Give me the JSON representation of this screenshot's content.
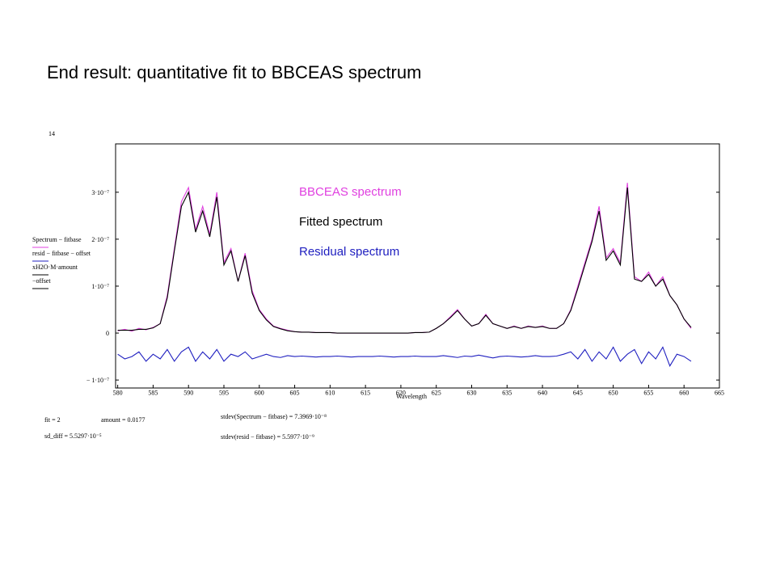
{
  "title": "End result: quantitative fit to BBCEAS spectrum",
  "chart_data": {
    "type": "line",
    "corner_label": "14",
    "x_label": "Wavelength",
    "trace_labels": [
      "Spectrum − fitbase",
      "resid − fitbase − offset",
      "xH2O·M·amount",
      "−offset"
    ],
    "xlim": [
      579.7,
      665
    ],
    "ylim": [
      -1.17e-07,
      4.03e-07
    ],
    "xticks": [
      580,
      585,
      590,
      595,
      600,
      605,
      610,
      615,
      620,
      625,
      630,
      635,
      640,
      645,
      650,
      655,
      660,
      665
    ],
    "yticks": [
      {
        "value": -1e-07,
        "label": "− 1·10⁻⁷"
      },
      0,
      {
        "value": 1e-07,
        "label": "1·10⁻⁷"
      },
      {
        "value": 2e-07,
        "label": "2·10⁻⁷"
      },
      {
        "value": 3e-07,
        "label": "3·10⁻⁷"
      }
    ],
    "x": [
      580,
      581,
      582,
      583,
      584,
      585,
      586,
      587,
      588,
      589,
      590,
      591,
      592,
      593,
      594,
      595,
      596,
      597,
      598,
      599,
      600,
      601,
      602,
      603,
      604,
      605,
      606,
      607,
      608,
      609,
      610,
      611,
      612,
      613,
      614,
      615,
      616,
      617,
      618,
      619,
      620,
      621,
      622,
      623,
      624,
      625,
      626,
      627,
      628,
      629,
      630,
      631,
      632,
      633,
      634,
      635,
      636,
      637,
      638,
      639,
      640,
      641,
      642,
      643,
      644,
      645,
      646,
      647,
      648,
      649,
      650,
      651,
      652,
      653,
      654,
      655,
      656,
      657,
      658,
      659,
      660,
      661
    ],
    "series": [
      {
        "name": "BBCEAS spectrum",
        "color": "#e040e0",
        "values": [
          5e-09,
          8e-09,
          4e-09,
          1e-08,
          7e-09,
          1.2e-08,
          2e-08,
          8e-08,
          1.8e-07,
          2.8e-07,
          3.1e-07,
          2.2e-07,
          2.7e-07,
          2.1e-07,
          3e-07,
          1.5e-07,
          1.8e-07,
          1.1e-07,
          1.7e-07,
          9e-08,
          5e-08,
          3e-08,
          1.5e-08,
          1e-08,
          6e-09,
          3e-09,
          2e-09,
          2e-09,
          1e-09,
          1e-09,
          1e-09,
          0,
          0,
          0,
          0,
          0,
          0,
          0,
          0,
          0,
          0,
          0,
          1e-09,
          1e-09,
          2e-09,
          1e-08,
          2e-08,
          3.5e-08,
          5e-08,
          3e-08,
          1.5e-08,
          2e-08,
          4e-08,
          2e-08,
          1.5e-08,
          1e-08,
          1.5e-08,
          1e-08,
          1.5e-08,
          1.2e-08,
          1.5e-08,
          1e-08,
          1e-08,
          2e-08,
          5e-08,
          1e-07,
          1.5e-07,
          2e-07,
          2.7e-07,
          1.6e-07,
          1.8e-07,
          1.5e-07,
          3.2e-07,
          1.2e-07,
          1.1e-07,
          1.3e-07,
          1e-07,
          1.2e-07,
          8e-08,
          6e-08,
          3e-08,
          1e-08
        ]
      },
      {
        "name": "Fitted spectrum",
        "color": "#000000",
        "values": [
          6e-09,
          6e-09,
          6e-09,
          8e-09,
          8e-09,
          1.1e-08,
          2e-08,
          7.5e-08,
          1.75e-07,
          2.7e-07,
          3e-07,
          2.15e-07,
          2.6e-07,
          2.05e-07,
          2.9e-07,
          1.45e-07,
          1.75e-07,
          1.1e-07,
          1.65e-07,
          8.5e-08,
          4.8e-08,
          2.8e-08,
          1.4e-08,
          9e-09,
          5e-09,
          3e-09,
          2e-09,
          2e-09,
          1e-09,
          1e-09,
          1e-09,
          0,
          0,
          0,
          0,
          0,
          0,
          0,
          0,
          0,
          0,
          0,
          1e-09,
          1e-09,
          2e-09,
          1e-08,
          2e-08,
          3.3e-08,
          4.8e-08,
          3e-08,
          1.5e-08,
          2e-08,
          3.8e-08,
          2e-08,
          1.5e-08,
          1e-08,
          1.4e-08,
          1e-08,
          1.4e-08,
          1.2e-08,
          1.4e-08,
          1e-08,
          1e-08,
          2e-08,
          4.8e-08,
          9.5e-08,
          1.45e-07,
          1.95e-07,
          2.6e-07,
          1.55e-07,
          1.75e-07,
          1.45e-07,
          3.1e-07,
          1.15e-07,
          1.1e-07,
          1.25e-07,
          1e-07,
          1.15e-07,
          8e-08,
          6e-08,
          3e-08,
          1.2e-08
        ]
      },
      {
        "name": "Residual spectrum",
        "color": "#2020c0",
        "values": [
          -4.5e-08,
          -5.5e-08,
          -5e-08,
          -4e-08,
          -6e-08,
          -4.5e-08,
          -5.5e-08,
          -3.5e-08,
          -6e-08,
          -4e-08,
          -3e-08,
          -6e-08,
          -4e-08,
          -5.5e-08,
          -3.5e-08,
          -6e-08,
          -4.5e-08,
          -5e-08,
          -4e-08,
          -5.5e-08,
          -5e-08,
          -4.5e-08,
          -5e-08,
          -5.2e-08,
          -4.8e-08,
          -5e-08,
          -4.9e-08,
          -5e-08,
          -5.1e-08,
          -5e-08,
          -5e-08,
          -4.9e-08,
          -5e-08,
          -5.1e-08,
          -5e-08,
          -5e-08,
          -5e-08,
          -4.9e-08,
          -5e-08,
          -5.1e-08,
          -5e-08,
          -5e-08,
          -4.9e-08,
          -5e-08,
          -5e-08,
          -5e-08,
          -4.8e-08,
          -5e-08,
          -5.2e-08,
          -4.9e-08,
          -5e-08,
          -4.7e-08,
          -5e-08,
          -5.3e-08,
          -5e-08,
          -4.9e-08,
          -5e-08,
          -5.1e-08,
          -5e-08,
          -4.8e-08,
          -5e-08,
          -5e-08,
          -4.9e-08,
          -4.5e-08,
          -4e-08,
          -5.5e-08,
          -3.5e-08,
          -6e-08,
          -4e-08,
          -5.5e-08,
          -3e-08,
          -6e-08,
          -4.5e-08,
          -3.5e-08,
          -6.5e-08,
          -4e-08,
          -5.5e-08,
          -3e-08,
          -7e-08,
          -4.5e-08,
          -5e-08,
          -6e-08
        ]
      }
    ],
    "results": {
      "fit": "fit = 2",
      "amount": "amount = 0.0177",
      "sd_diff": "sd_diff = 5.5297·10⁻⁵",
      "stdev_spectrum": "stdev(Spectrum − fitbase) = 7.3969·10⁻⁸",
      "stdev_resid": "stdev(resid − fitbase) = 5.5977·10⁻⁹"
    }
  }
}
